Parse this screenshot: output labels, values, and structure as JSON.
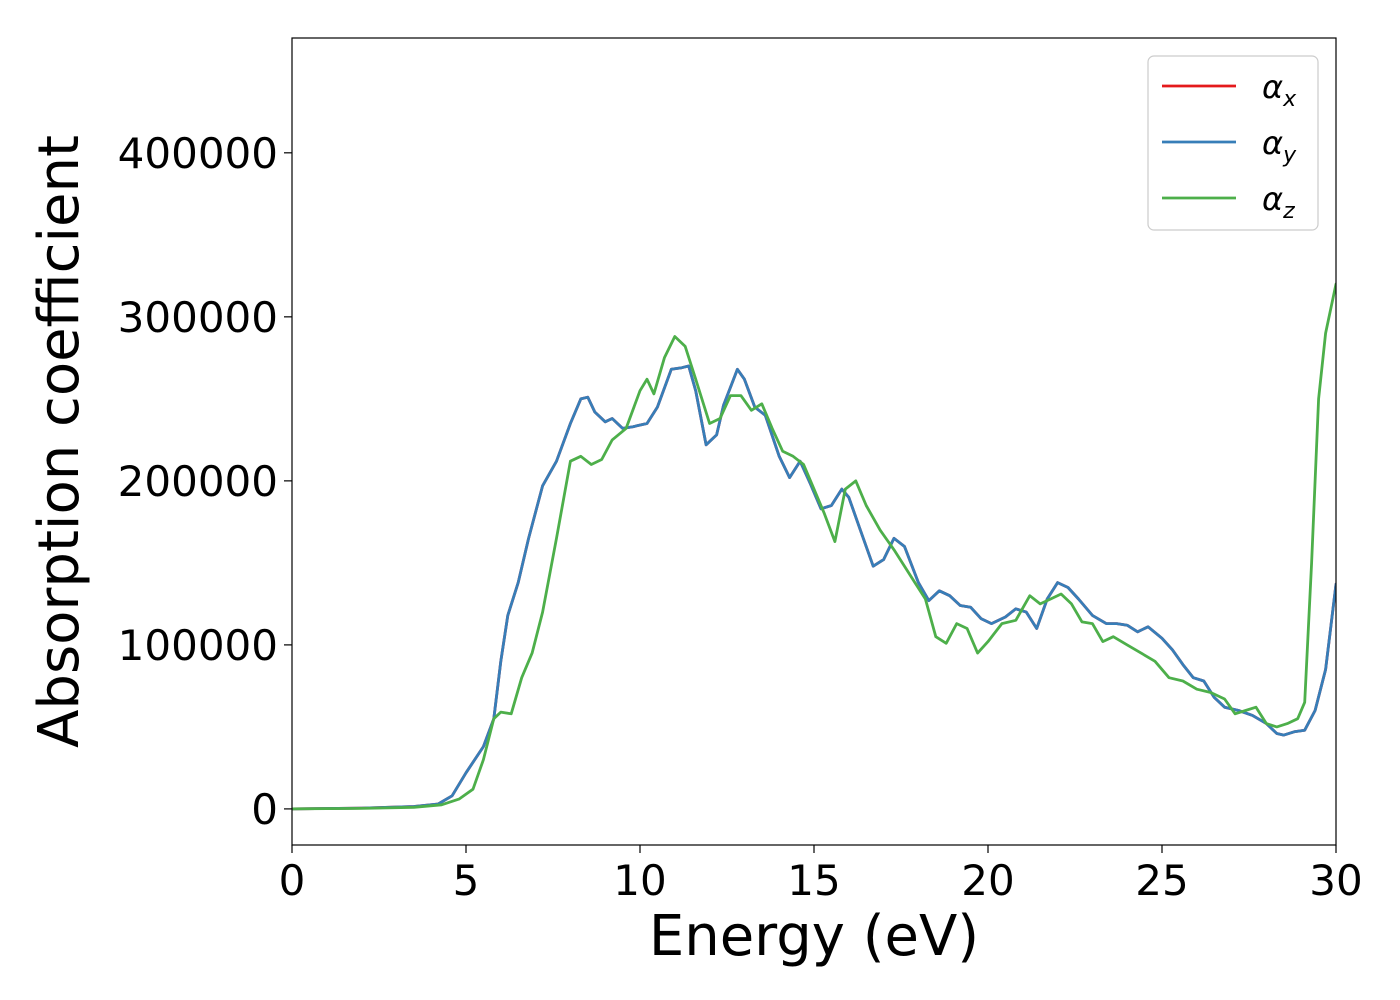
{
  "chart_data": {
    "type": "line",
    "title": "",
    "xlabel": "Energy (eV)",
    "ylabel": "Absorption coefficient",
    "xlim": [
      0,
      30
    ],
    "ylim": [
      -22000,
      470000
    ],
    "xticks": [
      0,
      5,
      10,
      15,
      20,
      25,
      30
    ],
    "yticks": [
      0,
      100000,
      200000,
      300000,
      400000
    ],
    "grid": false,
    "legend_position": "top-right",
    "series": [
      {
        "name": "α",
        "subscript": "x",
        "color": "#e41a1c",
        "x": [
          0,
          2,
          3.5,
          4.2,
          4.6,
          5.0,
          5.5,
          5.8,
          6.0,
          6.2,
          6.5,
          6.8,
          7.2,
          7.6,
          8.0,
          8.3,
          8.5,
          8.7,
          9.0,
          9.2,
          9.5,
          9.8,
          10.2,
          10.5,
          10.9,
          11.2,
          11.4,
          11.6,
          11.9,
          12.2,
          12.4,
          12.8,
          13.0,
          13.3,
          13.6,
          14.0,
          14.3,
          14.6,
          14.9,
          15.2,
          15.5,
          15.8,
          16.0,
          16.3,
          16.7,
          17.0,
          17.3,
          17.6,
          18.0,
          18.3,
          18.6,
          18.9,
          19.2,
          19.5,
          19.8,
          20.1,
          20.5,
          20.8,
          21.1,
          21.4,
          21.7,
          22.0,
          22.3,
          22.6,
          23.0,
          23.4,
          23.7,
          24.0,
          24.3,
          24.6,
          25.0,
          25.3,
          25.6,
          25.9,
          26.2,
          26.5,
          26.8,
          27.2,
          27.6,
          28.0,
          28.3,
          28.5,
          28.8,
          29.1,
          29.4,
          29.7,
          30.0
        ],
        "y": [
          0,
          500,
          1500,
          3000,
          8000,
          22000,
          38000,
          55000,
          90000,
          118000,
          138000,
          165000,
          197000,
          212000,
          235000,
          250000,
          251000,
          242000,
          236000,
          238000,
          232000,
          233000,
          235000,
          245000,
          268000,
          269000,
          270000,
          255000,
          222000,
          228000,
          246000,
          268000,
          262000,
          245000,
          240000,
          215000,
          202000,
          212000,
          198000,
          183000,
          185000,
          195000,
          190000,
          172000,
          148000,
          152000,
          165000,
          160000,
          138000,
          127000,
          133000,
          130000,
          124000,
          123000,
          116000,
          113000,
          117000,
          122000,
          120000,
          110000,
          128000,
          138000,
          135000,
          128000,
          118000,
          113000,
          113000,
          112000,
          108000,
          111000,
          104000,
          97000,
          88000,
          80000,
          78000,
          68000,
          62000,
          60000,
          57000,
          52000,
          46000,
          45000,
          47000,
          48000,
          60000,
          85000,
          137000
        ]
      },
      {
        "name": "α",
        "subscript": "y",
        "color": "#377eb8",
        "x": [
          0,
          2,
          3.5,
          4.2,
          4.6,
          5.0,
          5.5,
          5.8,
          6.0,
          6.2,
          6.5,
          6.8,
          7.2,
          7.6,
          8.0,
          8.3,
          8.5,
          8.7,
          9.0,
          9.2,
          9.5,
          9.8,
          10.2,
          10.5,
          10.9,
          11.2,
          11.4,
          11.6,
          11.9,
          12.2,
          12.4,
          12.8,
          13.0,
          13.3,
          13.6,
          14.0,
          14.3,
          14.6,
          14.9,
          15.2,
          15.5,
          15.8,
          16.0,
          16.3,
          16.7,
          17.0,
          17.3,
          17.6,
          18.0,
          18.3,
          18.6,
          18.9,
          19.2,
          19.5,
          19.8,
          20.1,
          20.5,
          20.8,
          21.1,
          21.4,
          21.7,
          22.0,
          22.3,
          22.6,
          23.0,
          23.4,
          23.7,
          24.0,
          24.3,
          24.6,
          25.0,
          25.3,
          25.6,
          25.9,
          26.2,
          26.5,
          26.8,
          27.2,
          27.6,
          28.0,
          28.3,
          28.5,
          28.8,
          29.1,
          29.4,
          29.7,
          30.0
        ],
        "y": [
          0,
          500,
          1500,
          3000,
          8000,
          22000,
          38000,
          55000,
          90000,
          118000,
          138000,
          165000,
          197000,
          212000,
          235000,
          250000,
          251000,
          242000,
          236000,
          238000,
          232000,
          233000,
          235000,
          245000,
          268000,
          269000,
          270000,
          255000,
          222000,
          228000,
          246000,
          268000,
          262000,
          245000,
          240000,
          215000,
          202000,
          212000,
          198000,
          183000,
          185000,
          195000,
          190000,
          172000,
          148000,
          152000,
          165000,
          160000,
          138000,
          127000,
          133000,
          130000,
          124000,
          123000,
          116000,
          113000,
          117000,
          122000,
          120000,
          110000,
          128000,
          138000,
          135000,
          128000,
          118000,
          113000,
          113000,
          112000,
          108000,
          111000,
          104000,
          97000,
          88000,
          80000,
          78000,
          68000,
          62000,
          60000,
          57000,
          52000,
          46000,
          45000,
          47000,
          48000,
          60000,
          85000,
          137000
        ]
      },
      {
        "name": "α",
        "subscript": "z",
        "color": "#4daf4a",
        "x": [
          0,
          2,
          3.5,
          4.3,
          4.8,
          5.2,
          5.5,
          5.8,
          6.0,
          6.3,
          6.6,
          6.9,
          7.2,
          7.6,
          8.0,
          8.3,
          8.6,
          8.9,
          9.2,
          9.6,
          10.0,
          10.2,
          10.4,
          10.7,
          11.0,
          11.3,
          11.6,
          12.0,
          12.3,
          12.6,
          12.9,
          13.2,
          13.5,
          13.8,
          14.1,
          14.4,
          14.7,
          15.0,
          15.3,
          15.6,
          15.9,
          16.2,
          16.5,
          16.9,
          17.3,
          17.6,
          17.9,
          18.2,
          18.5,
          18.8,
          19.1,
          19.4,
          19.7,
          20.0,
          20.4,
          20.8,
          21.2,
          21.5,
          21.8,
          22.1,
          22.4,
          22.7,
          23.0,
          23.3,
          23.6,
          24.0,
          24.4,
          24.8,
          25.2,
          25.6,
          26.0,
          26.4,
          26.8,
          27.1,
          27.4,
          27.7,
          28.0,
          28.3,
          28.6,
          28.9,
          29.1,
          29.3,
          29.5,
          29.7,
          30.0
        ],
        "y": [
          0,
          300,
          1000,
          2500,
          6000,
          12000,
          30000,
          55000,
          59000,
          58000,
          80000,
          95000,
          120000,
          165000,
          212000,
          215000,
          210000,
          213000,
          225000,
          232000,
          255000,
          262000,
          253000,
          275000,
          288000,
          282000,
          262000,
          235000,
          238000,
          252000,
          252000,
          243000,
          247000,
          232000,
          218000,
          215000,
          210000,
          195000,
          180000,
          163000,
          195000,
          200000,
          185000,
          170000,
          158000,
          148000,
          138000,
          128000,
          105000,
          101000,
          113000,
          110000,
          95000,
          102000,
          113000,
          115000,
          130000,
          125000,
          128000,
          131000,
          125000,
          114000,
          113000,
          102000,
          105000,
          100000,
          95000,
          90000,
          80000,
          78000,
          73000,
          71000,
          67000,
          58000,
          60000,
          62000,
          52000,
          50000,
          52000,
          55000,
          65000,
          150000,
          250000,
          290000,
          320000
        ]
      }
    ]
  }
}
